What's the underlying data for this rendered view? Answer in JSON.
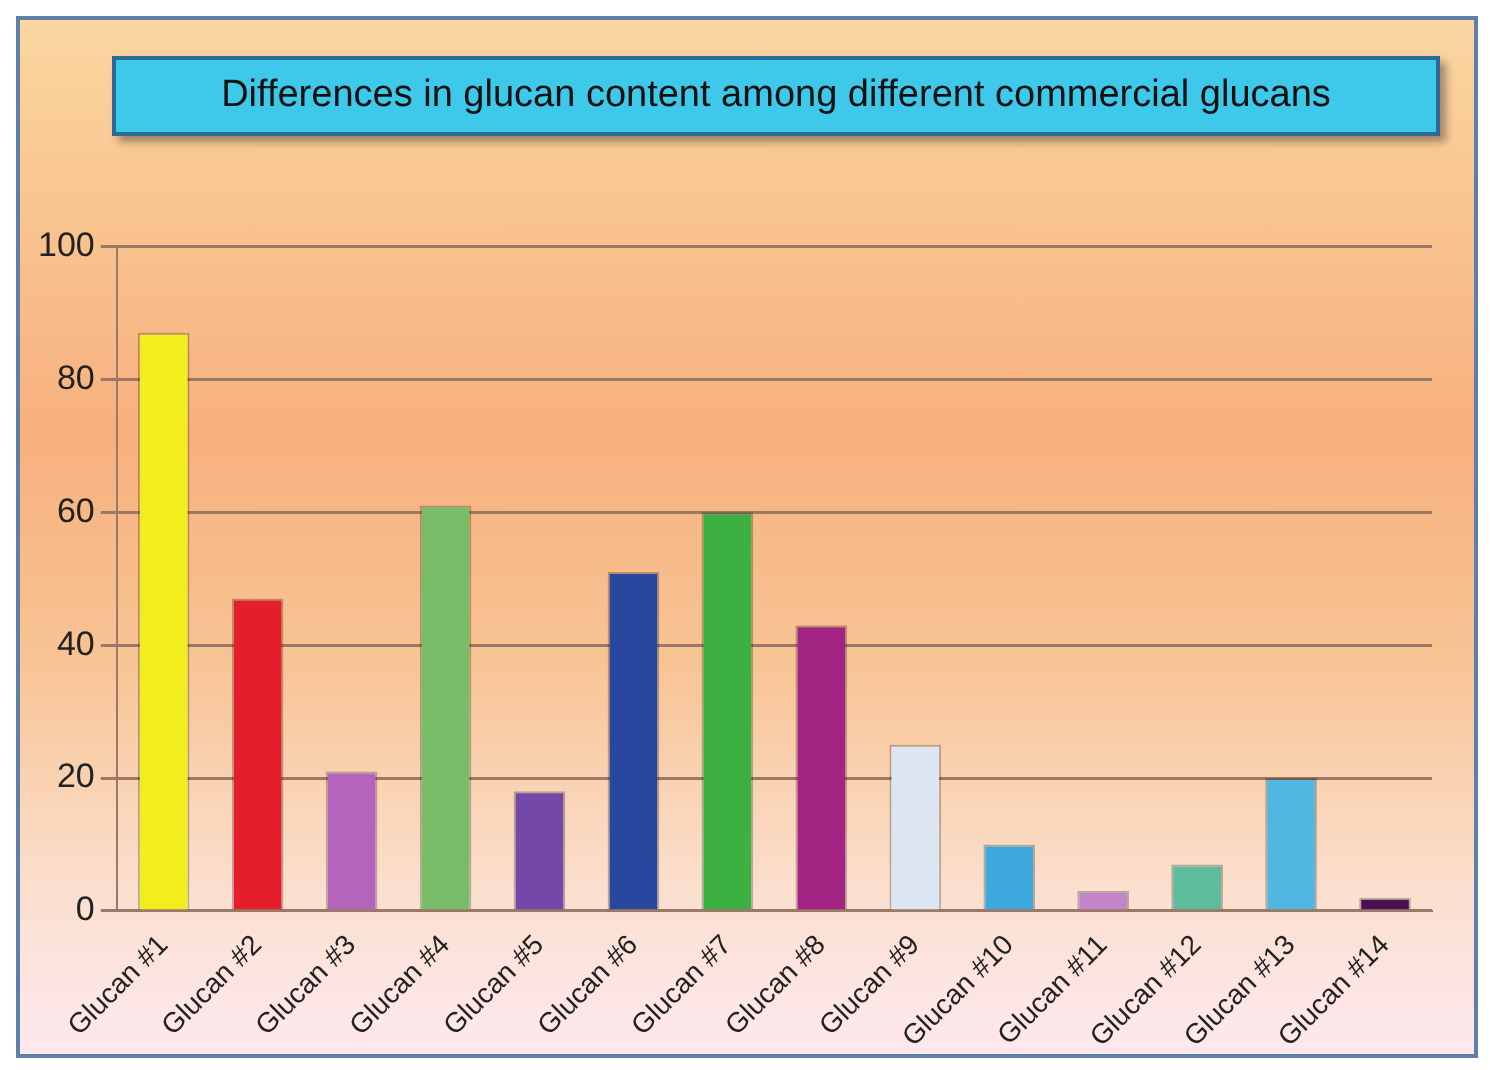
{
  "chart_data": {
    "type": "bar",
    "title": "Differences in glucan content among different commercial glucans",
    "categories": [
      "Glucan #1",
      "Glucan #2",
      "Glucan #3",
      "Glucan #4",
      "Glucan #5",
      "Glucan #6",
      "Glucan #7",
      "Glucan #8",
      "Glucan #9",
      "Glucan #10",
      "Glucan #11",
      "Glucan #12",
      "Glucan #13",
      "Glucan #14"
    ],
    "values": [
      87,
      47,
      21,
      61,
      18,
      51,
      60,
      43,
      25,
      10,
      3,
      7,
      20,
      2
    ],
    "colors": [
      "#f2ee1e",
      "#e41e2a",
      "#b464bc",
      "#78bc68",
      "#7448a8",
      "#2848a0",
      "#3cb040",
      "#a42484",
      "#dce6f2",
      "#3ca8dc",
      "#c484cc",
      "#5cbc9c",
      "#50b8e0",
      "#4a1050"
    ],
    "ylim": [
      0,
      100
    ],
    "yticks": [
      0,
      20,
      40,
      60,
      80,
      100
    ],
    "grid": "y"
  }
}
